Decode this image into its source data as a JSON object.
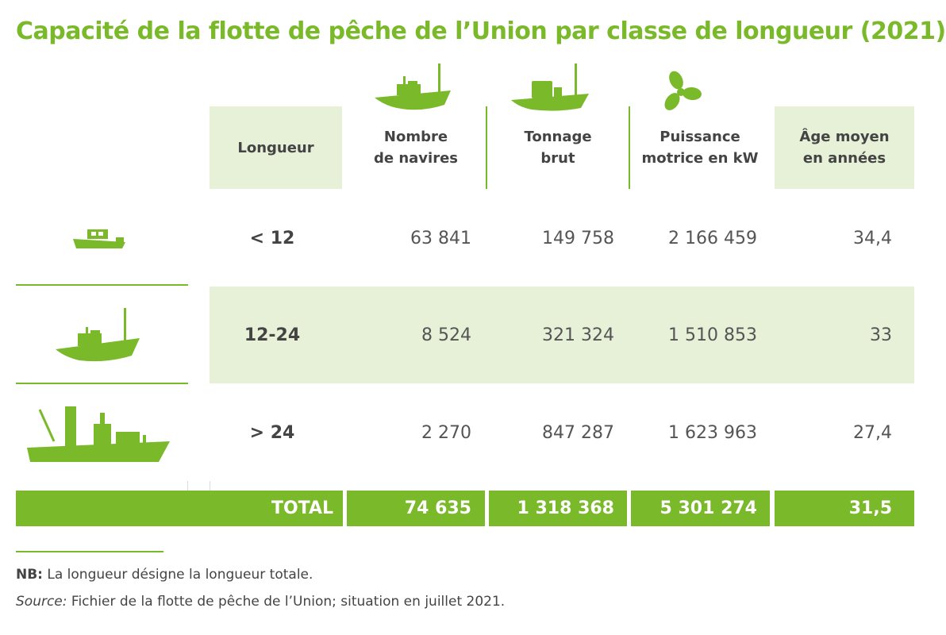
{
  "title": "Capacité de la flotte de pêche de l’Union par classe de longueur (2021)",
  "colors": {
    "accent": "#7ab929",
    "band": "#e6f1d7",
    "text": "#444444"
  },
  "headers": {
    "length": "Longueur",
    "vessels_l1": "Nombre",
    "vessels_l2": "de navires",
    "tonnage_l1": "Tonnage",
    "tonnage_l2": "brut",
    "power_l1": "Puissance",
    "power_l2": "motrice en kW",
    "age_l1": "Âge moyen",
    "age_l2": "en années"
  },
  "header_icons": [
    "fishing-trawler-icon",
    "cargo-vessel-icon",
    "propeller-icon"
  ],
  "rows": [
    {
      "icon": "small-boat-icon",
      "length": "< 12",
      "vessels": "63 841",
      "tonnage": "149 758",
      "power": "2 166 459",
      "age": "34,4"
    },
    {
      "icon": "trawler-icon",
      "length": "12-24",
      "vessels": "8 524",
      "tonnage": "321 324",
      "power": "1 510 853",
      "age": "33"
    },
    {
      "icon": "large-ship-icon",
      "length": "> 24",
      "vessels": "2 270",
      "tonnage": "847 287",
      "power": "1 623 963",
      "age": "27,4"
    }
  ],
  "total": {
    "label": "TOTAL",
    "vessels": "74 635",
    "tonnage": "1 318 368",
    "power": "5 301 274",
    "age": "31,5"
  },
  "notes": {
    "nb_label": "NB:",
    "nb_text": " La longueur désigne la longueur totale.",
    "source_label": "Source:",
    "source_text": " Fichier de la flotte de pêche de l’Union; situation en juillet 2021."
  }
}
